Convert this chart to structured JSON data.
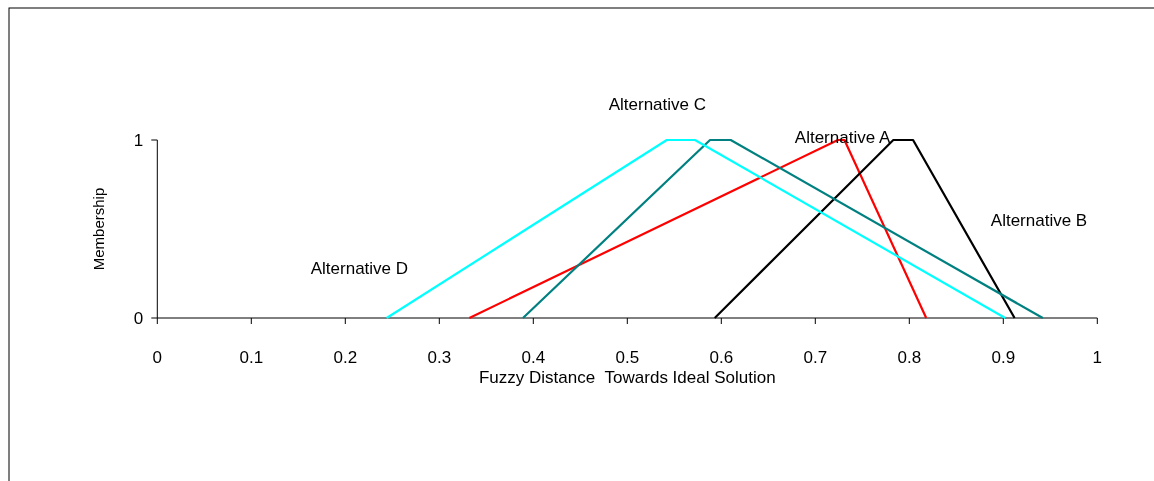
{
  "chart_data": {
    "type": "line",
    "xlabel": "Fuzzy Distance  Towards Ideal Solution",
    "ylabel": "Membership",
    "xlim": [
      0,
      1
    ],
    "xticks": [
      0,
      0.1,
      0.2,
      0.3,
      0.4,
      0.5,
      0.6,
      0.7,
      0.8,
      0.9,
      1
    ],
    "ylim": [
      0,
      1
    ],
    "yticks": [
      0,
      1
    ],
    "grid": false,
    "marker": "none",
    "line_style": "solid",
    "series": [
      {
        "name": "Alternative A",
        "color": "#ff0000",
        "x": [
          0.332,
          0.724,
          0.731,
          0.818
        ],
        "values": [
          0,
          1,
          1,
          0
        ]
      },
      {
        "name": "Alternative B",
        "color": "#000000",
        "x": [
          0.593,
          0.783,
          0.804,
          0.912
        ],
        "values": [
          0,
          1,
          1,
          0
        ]
      },
      {
        "name": "Alternative C",
        "color": "#008080",
        "x": [
          0.389,
          0.588,
          0.61,
          0.942
        ],
        "values": [
          0,
          1,
          1,
          0
        ]
      },
      {
        "name": "Alternative D",
        "color": "#00ffff",
        "x": [
          0.244,
          0.542,
          0.572,
          0.902
        ],
        "values": [
          0,
          1,
          1,
          0
        ]
      }
    ]
  }
}
